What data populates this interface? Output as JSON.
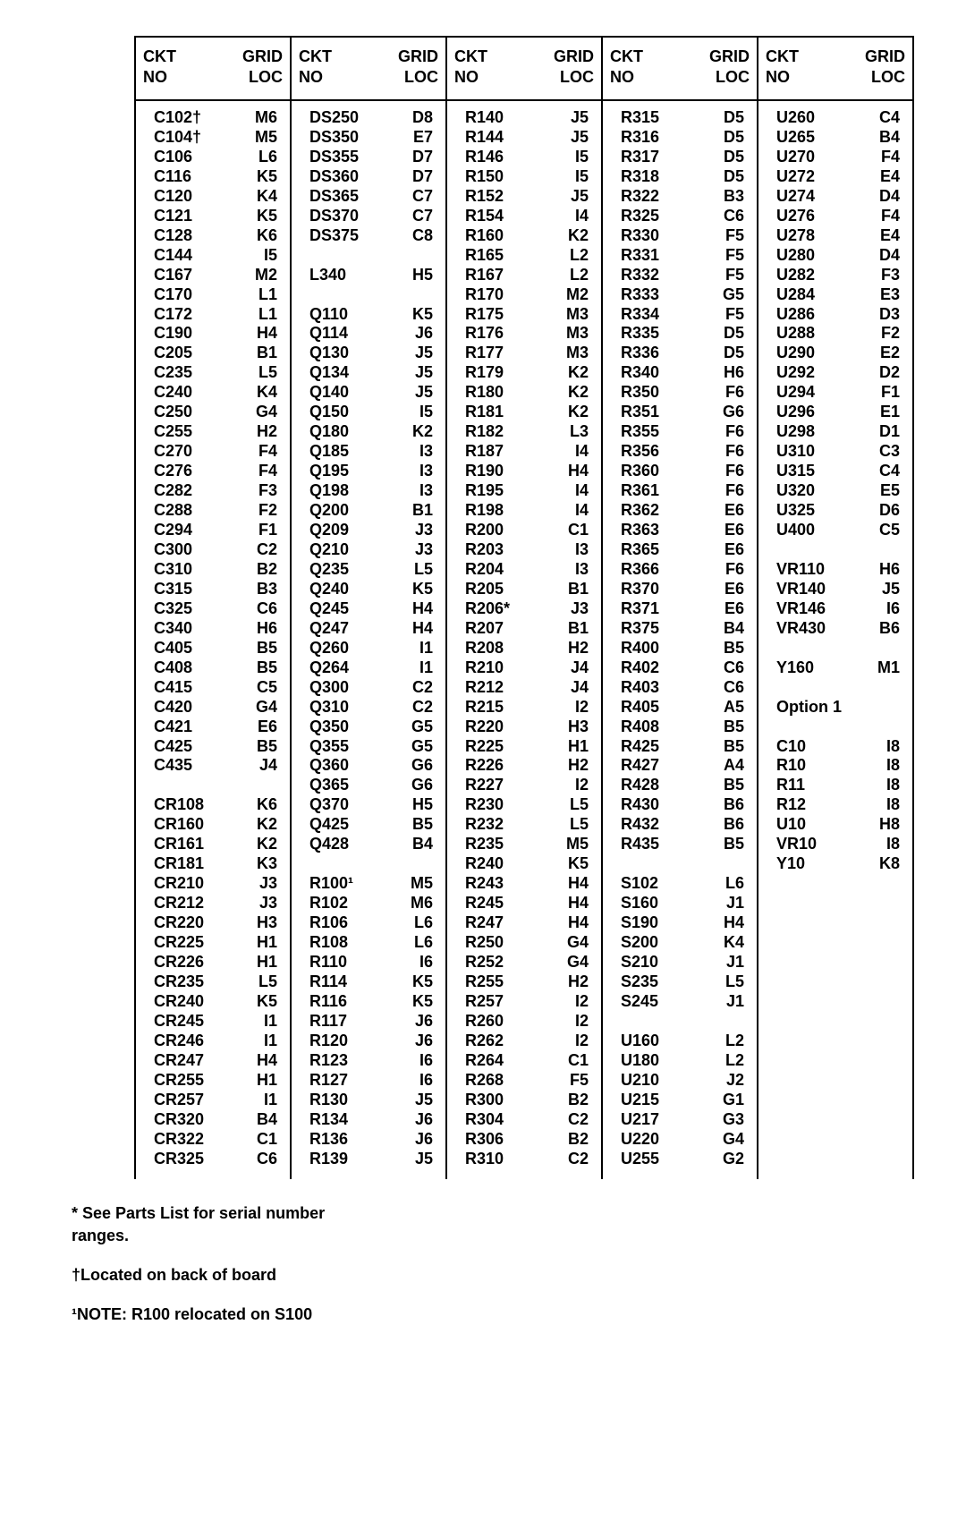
{
  "table": {
    "header": {
      "ckt": "CKT NO",
      "grid": "GRID LOC"
    },
    "columns": [
      [
        [
          "C102†",
          "M6"
        ],
        [
          "C104†",
          "M5"
        ],
        [
          "C106",
          "L6"
        ],
        [
          "C116",
          "K5"
        ],
        [
          "C120",
          "K4"
        ],
        [
          "C121",
          "K5"
        ],
        [
          "C128",
          "K6"
        ],
        [
          "C144",
          "I5"
        ],
        [
          "C167",
          "M2"
        ],
        [
          "C170",
          "L1"
        ],
        [
          "C172",
          "L1"
        ],
        [
          "C190",
          "H4"
        ],
        [
          "C205",
          "B1"
        ],
        [
          "C235",
          "L5"
        ],
        [
          "C240",
          "K4"
        ],
        [
          "C250",
          "G4"
        ],
        [
          "C255",
          "H2"
        ],
        [
          "C270",
          "F4"
        ],
        [
          "C276",
          "F4"
        ],
        [
          "C282",
          "F3"
        ],
        [
          "C288",
          "F2"
        ],
        [
          "C294",
          "F1"
        ],
        [
          "C300",
          "C2"
        ],
        [
          "C310",
          "B2"
        ],
        [
          "C315",
          "B3"
        ],
        [
          "C325",
          "C6"
        ],
        [
          "C340",
          "H6"
        ],
        [
          "C405",
          "B5"
        ],
        [
          "C408",
          "B5"
        ],
        [
          "C415",
          "C5"
        ],
        [
          "C420",
          "G4"
        ],
        [
          "C421",
          "E6"
        ],
        [
          "C425",
          "B5"
        ],
        [
          "C435",
          "J4"
        ],
        [
          "",
          ""
        ],
        [
          "CR108",
          "K6"
        ],
        [
          "CR160",
          "K2"
        ],
        [
          "CR161",
          "K2"
        ],
        [
          "CR181",
          "K3"
        ],
        [
          "CR210",
          "J3"
        ],
        [
          "CR212",
          "J3"
        ],
        [
          "CR220",
          "H3"
        ],
        [
          "CR225",
          "H1"
        ],
        [
          "CR226",
          "H1"
        ],
        [
          "CR235",
          "L5"
        ],
        [
          "CR240",
          "K5"
        ],
        [
          "CR245",
          "I1"
        ],
        [
          "CR246",
          "I1"
        ],
        [
          "CR247",
          "H4"
        ],
        [
          "CR255",
          "H1"
        ],
        [
          "CR257",
          "I1"
        ],
        [
          "CR320",
          "B4"
        ],
        [
          "CR322",
          "C1"
        ],
        [
          "CR325",
          "C6"
        ]
      ],
      [
        [
          "DS250",
          "D8"
        ],
        [
          "DS350",
          "E7"
        ],
        [
          "DS355",
          "D7"
        ],
        [
          "DS360",
          "D7"
        ],
        [
          "DS365",
          "C7"
        ],
        [
          "DS370",
          "C7"
        ],
        [
          "DS375",
          "C8"
        ],
        [
          "",
          ""
        ],
        [
          "L340",
          "H5"
        ],
        [
          "",
          ""
        ],
        [
          "Q110",
          "K5"
        ],
        [
          "Q114",
          "J6"
        ],
        [
          "Q130",
          "J5"
        ],
        [
          "Q134",
          "J5"
        ],
        [
          "Q140",
          "J5"
        ],
        [
          "Q150",
          "I5"
        ],
        [
          "Q180",
          "K2"
        ],
        [
          "Q185",
          "I3"
        ],
        [
          "Q195",
          "I3"
        ],
        [
          "Q198",
          "I3"
        ],
        [
          "Q200",
          "B1"
        ],
        [
          "Q209",
          "J3"
        ],
        [
          "Q210",
          "J3"
        ],
        [
          "Q235",
          "L5"
        ],
        [
          "Q240",
          "K5"
        ],
        [
          "Q245",
          "H4"
        ],
        [
          "Q247",
          "H4"
        ],
        [
          "Q260",
          "I1"
        ],
        [
          "Q264",
          "I1"
        ],
        [
          "Q300",
          "C2"
        ],
        [
          "Q310",
          "C2"
        ],
        [
          "Q350",
          "G5"
        ],
        [
          "Q355",
          "G5"
        ],
        [
          "Q360",
          "G6"
        ],
        [
          "Q365",
          "G6"
        ],
        [
          "Q370",
          "H5"
        ],
        [
          "Q425",
          "B5"
        ],
        [
          "Q428",
          "B4"
        ],
        [
          "",
          ""
        ],
        [
          "R100¹",
          "M5"
        ],
        [
          "R102",
          "M6"
        ],
        [
          "R106",
          "L6"
        ],
        [
          "R108",
          "L6"
        ],
        [
          "R110",
          "I6"
        ],
        [
          "R114",
          "K5"
        ],
        [
          "R116",
          "K5"
        ],
        [
          "R117",
          "J6"
        ],
        [
          "R120",
          "J6"
        ],
        [
          "R123",
          "I6"
        ],
        [
          "R127",
          "I6"
        ],
        [
          "R130",
          "J5"
        ],
        [
          "R134",
          "J6"
        ],
        [
          "R136",
          "J6"
        ],
        [
          "R139",
          "J5"
        ]
      ],
      [
        [
          "R140",
          "J5"
        ],
        [
          "R144",
          "J5"
        ],
        [
          "R146",
          "I5"
        ],
        [
          "R150",
          "I5"
        ],
        [
          "R152",
          "J5"
        ],
        [
          "R154",
          "I4"
        ],
        [
          "R160",
          "K2"
        ],
        [
          "R165",
          "L2"
        ],
        [
          "R167",
          "L2"
        ],
        [
          "R170",
          "M2"
        ],
        [
          "R175",
          "M3"
        ],
        [
          "R176",
          "M3"
        ],
        [
          "R177",
          "M3"
        ],
        [
          "R179",
          "K2"
        ],
        [
          "R180",
          "K2"
        ],
        [
          "R181",
          "K2"
        ],
        [
          "R182",
          "L3"
        ],
        [
          "R187",
          "I4"
        ],
        [
          "R190",
          "H4"
        ],
        [
          "R195",
          "I4"
        ],
        [
          "R198",
          "I4"
        ],
        [
          "R200",
          "C1"
        ],
        [
          "R203",
          "I3"
        ],
        [
          "R204",
          "I3"
        ],
        [
          "R205",
          "B1"
        ],
        [
          "R206*",
          "J3"
        ],
        [
          "R207",
          "B1"
        ],
        [
          "R208",
          "H2"
        ],
        [
          "R210",
          "J4"
        ],
        [
          "R212",
          "J4"
        ],
        [
          "R215",
          "I2"
        ],
        [
          "R220",
          "H3"
        ],
        [
          "R225",
          "H1"
        ],
        [
          "R226",
          "H2"
        ],
        [
          "R227",
          "I2"
        ],
        [
          "R230",
          "L5"
        ],
        [
          "R232",
          "L5"
        ],
        [
          "R235",
          "M5"
        ],
        [
          "R240",
          "K5"
        ],
        [
          "R243",
          "H4"
        ],
        [
          "R245",
          "H4"
        ],
        [
          "R247",
          "H4"
        ],
        [
          "R250",
          "G4"
        ],
        [
          "R252",
          "G4"
        ],
        [
          "R255",
          "H2"
        ],
        [
          "R257",
          "I2"
        ],
        [
          "R260",
          "I2"
        ],
        [
          "R262",
          "I2"
        ],
        [
          "R264",
          "C1"
        ],
        [
          "R268",
          "F5"
        ],
        [
          "R300",
          "B2"
        ],
        [
          "R304",
          "C2"
        ],
        [
          "R306",
          "B2"
        ],
        [
          "R310",
          "C2"
        ]
      ],
      [
        [
          "R315",
          "D5"
        ],
        [
          "R316",
          "D5"
        ],
        [
          "R317",
          "D5"
        ],
        [
          "R318",
          "D5"
        ],
        [
          "R322",
          "B3"
        ],
        [
          "R325",
          "C6"
        ],
        [
          "R330",
          "F5"
        ],
        [
          "R331",
          "F5"
        ],
        [
          "R332",
          "F5"
        ],
        [
          "R333",
          "G5"
        ],
        [
          "R334",
          "F5"
        ],
        [
          "R335",
          "D5"
        ],
        [
          "R336",
          "D5"
        ],
        [
          "R340",
          "H6"
        ],
        [
          "R350",
          "F6"
        ],
        [
          "R351",
          "G6"
        ],
        [
          "R355",
          "F6"
        ],
        [
          "R356",
          "F6"
        ],
        [
          "R360",
          "F6"
        ],
        [
          "R361",
          "F6"
        ],
        [
          "R362",
          "E6"
        ],
        [
          "R363",
          "E6"
        ],
        [
          "R365",
          "E6"
        ],
        [
          "R366",
          "F6"
        ],
        [
          "R370",
          "E6"
        ],
        [
          "R371",
          "E6"
        ],
        [
          "R375",
          "B4"
        ],
        [
          "R400",
          "B5"
        ],
        [
          "R402",
          "C6"
        ],
        [
          "R403",
          "C6"
        ],
        [
          "R405",
          "A5"
        ],
        [
          "R408",
          "B5"
        ],
        [
          "R425",
          "B5"
        ],
        [
          "R427",
          "A4"
        ],
        [
          "R428",
          "B5"
        ],
        [
          "R430",
          "B6"
        ],
        [
          "R432",
          "B6"
        ],
        [
          "R435",
          "B5"
        ],
        [
          "",
          ""
        ],
        [
          "S102",
          "L6"
        ],
        [
          "S160",
          "J1"
        ],
        [
          "S190",
          "H4"
        ],
        [
          "S200",
          "K4"
        ],
        [
          "S210",
          "J1"
        ],
        [
          "S235",
          "L5"
        ],
        [
          "S245",
          "J1"
        ],
        [
          "",
          ""
        ],
        [
          "U160",
          "L2"
        ],
        [
          "U180",
          "L2"
        ],
        [
          "U210",
          "J2"
        ],
        [
          "U215",
          "G1"
        ],
        [
          "U217",
          "G3"
        ],
        [
          "U220",
          "G4"
        ],
        [
          "U255",
          "G2"
        ]
      ],
      [
        [
          "U260",
          "C4"
        ],
        [
          "U265",
          "B4"
        ],
        [
          "U270",
          "F4"
        ],
        [
          "U272",
          "E4"
        ],
        [
          "U274",
          "D4"
        ],
        [
          "U276",
          "F4"
        ],
        [
          "U278",
          "E4"
        ],
        [
          "U280",
          "D4"
        ],
        [
          "U282",
          "F3"
        ],
        [
          "U284",
          "E3"
        ],
        [
          "U286",
          "D3"
        ],
        [
          "U288",
          "F2"
        ],
        [
          "U290",
          "E2"
        ],
        [
          "U292",
          "D2"
        ],
        [
          "U294",
          "F1"
        ],
        [
          "U296",
          "E1"
        ],
        [
          "U298",
          "D1"
        ],
        [
          "U310",
          "C3"
        ],
        [
          "U315",
          "C4"
        ],
        [
          "U320",
          "E5"
        ],
        [
          "U325",
          "D6"
        ],
        [
          "U400",
          "C5"
        ],
        [
          "",
          ""
        ],
        [
          "VR110",
          "H6"
        ],
        [
          "VR140",
          "J5"
        ],
        [
          "VR146",
          "I6"
        ],
        [
          "VR430",
          "B6"
        ],
        [
          "",
          ""
        ],
        [
          "Y160",
          "M1"
        ],
        [
          "",
          ""
        ],
        [
          "Option 1",
          "",
          "section"
        ],
        [
          "",
          ""
        ],
        [
          "C10",
          "I8"
        ],
        [
          "R10",
          "I8"
        ],
        [
          "R11",
          "I8"
        ],
        [
          "R12",
          "I8"
        ],
        [
          "U10",
          "H8"
        ],
        [
          "VR10",
          "I8"
        ],
        [
          "Y10",
          "K8"
        ]
      ]
    ]
  },
  "footnotes": [
    "* See Parts List for serial number ranges.",
    "†Located on back of board",
    "¹NOTE: R100 relocated on S100"
  ]
}
